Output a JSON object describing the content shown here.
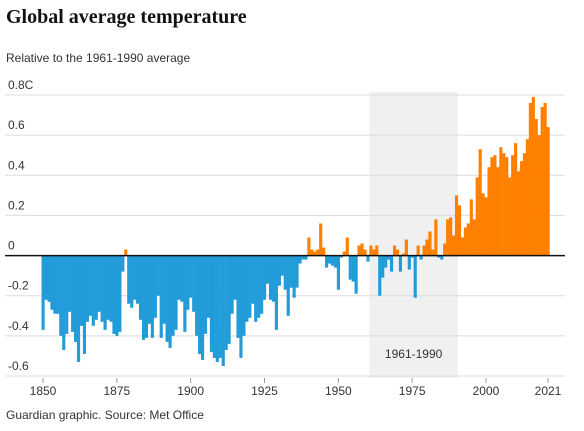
{
  "chart_data": {
    "type": "bar",
    "title": "Global average temperature",
    "subtitle": "Relative to the 1961-1990 average",
    "source": "Guardian graphic. Source: Met Office",
    "highlight": {
      "label": "1961-1990",
      "range": [
        1961,
        1990
      ]
    },
    "colors": {
      "positive": "#ff7f00",
      "negative": "#229cd8"
    },
    "xlim": [
      1850,
      2021
    ],
    "xticks": [
      1850,
      1875,
      1900,
      1925,
      1950,
      1975,
      2000,
      2021
    ],
    "ylim": [
      -0.6,
      0.8
    ],
    "yticks": [
      {
        "value": 0.8,
        "label": "0.8C"
      },
      0.6,
      0.4,
      0.2,
      0,
      -0.2,
      -0.4,
      -0.6
    ],
    "grid": true,
    "x": [
      1850,
      1851,
      1852,
      1853,
      1854,
      1855,
      1856,
      1857,
      1858,
      1859,
      1860,
      1861,
      1862,
      1863,
      1864,
      1865,
      1866,
      1867,
      1868,
      1869,
      1870,
      1871,
      1872,
      1873,
      1874,
      1875,
      1876,
      1877,
      1878,
      1879,
      1880,
      1881,
      1882,
      1883,
      1884,
      1885,
      1886,
      1887,
      1888,
      1889,
      1890,
      1891,
      1892,
      1893,
      1894,
      1895,
      1896,
      1897,
      1898,
      1899,
      1900,
      1901,
      1902,
      1903,
      1904,
      1905,
      1906,
      1907,
      1908,
      1909,
      1910,
      1911,
      1912,
      1913,
      1914,
      1915,
      1916,
      1917,
      1918,
      1919,
      1920,
      1921,
      1922,
      1923,
      1924,
      1925,
      1926,
      1927,
      1928,
      1929,
      1930,
      1931,
      1932,
      1933,
      1934,
      1935,
      1936,
      1937,
      1938,
      1939,
      1940,
      1941,
      1942,
      1943,
      1944,
      1945,
      1946,
      1947,
      1948,
      1949,
      1950,
      1951,
      1952,
      1953,
      1954,
      1955,
      1956,
      1957,
      1958,
      1959,
      1960,
      1961,
      1962,
      1963,
      1964,
      1965,
      1966,
      1967,
      1968,
      1969,
      1970,
      1971,
      1972,
      1973,
      1974,
      1975,
      1976,
      1977,
      1978,
      1979,
      1980,
      1981,
      1982,
      1983,
      1984,
      1985,
      1986,
      1987,
      1988,
      1989,
      1990,
      1991,
      1992,
      1993,
      1994,
      1995,
      1996,
      1997,
      1998,
      1999,
      2000,
      2001,
      2002,
      2003,
      2004,
      2005,
      2006,
      2007,
      2008,
      2009,
      2010,
      2011,
      2012,
      2013,
      2014,
      2015,
      2016,
      2017,
      2018,
      2019,
      2020,
      2021
    ],
    "values": [
      -0.37,
      -0.22,
      -0.23,
      -0.27,
      -0.29,
      -0.29,
      -0.4,
      -0.47,
      -0.39,
      -0.28,
      -0.38,
      -0.43,
      -0.53,
      -0.35,
      -0.49,
      -0.33,
      -0.3,
      -0.35,
      -0.32,
      -0.28,
      -0.33,
      -0.37,
      -0.32,
      -0.33,
      -0.39,
      -0.4,
      -0.38,
      -0.08,
      0.03,
      -0.24,
      -0.26,
      -0.22,
      -0.24,
      -0.32,
      -0.42,
      -0.41,
      -0.34,
      -0.41,
      -0.31,
      -0.2,
      -0.41,
      -0.34,
      -0.43,
      -0.46,
      -0.4,
      -0.37,
      -0.22,
      -0.23,
      -0.38,
      -0.27,
      -0.21,
      -0.28,
      -0.4,
      -0.49,
      -0.52,
      -0.39,
      -0.31,
      -0.48,
      -0.51,
      -0.53,
      -0.51,
      -0.55,
      -0.47,
      -0.44,
      -0.29,
      -0.22,
      -0.41,
      -0.51,
      -0.4,
      -0.33,
      -0.31,
      -0.24,
      -0.33,
      -0.31,
      -0.29,
      -0.22,
      -0.14,
      -0.22,
      -0.23,
      -0.37,
      -0.15,
      -0.1,
      -0.17,
      -0.3,
      -0.16,
      -0.21,
      -0.16,
      -0.04,
      -0.02,
      -0.02,
      0.09,
      0.03,
      0.02,
      0.03,
      0.16,
      0.04,
      -0.06,
      -0.04,
      -0.05,
      -0.06,
      -0.17,
      -0.01,
      0.02,
      0.09,
      -0.12,
      -0.13,
      -0.19,
      0.05,
      0.06,
      0.03,
      -0.03,
      0.05,
      0.03,
      0.05,
      -0.2,
      -0.11,
      -0.06,
      -0.02,
      -0.08,
      0.05,
      0.03,
      -0.08,
      0.01,
      0.08,
      -0.07,
      -0.01,
      -0.21,
      0.05,
      -0.02,
      0.05,
      0.08,
      0.12,
      0.03,
      0.18,
      -0.01,
      -0.02,
      0.06,
      0.18,
      0.19,
      0.1,
      0.3,
      0.25,
      0.09,
      0.14,
      0.16,
      0.28,
      0.18,
      0.39,
      0.53,
      0.31,
      0.29,
      0.44,
      0.49,
      0.5,
      0.44,
      0.54,
      0.51,
      0.49,
      0.39,
      0.5,
      0.56,
      0.42,
      0.47,
      0.51,
      0.58,
      0.76,
      0.79,
      0.68,
      0.6,
      0.74,
      0.76,
      0.64
    ]
  }
}
